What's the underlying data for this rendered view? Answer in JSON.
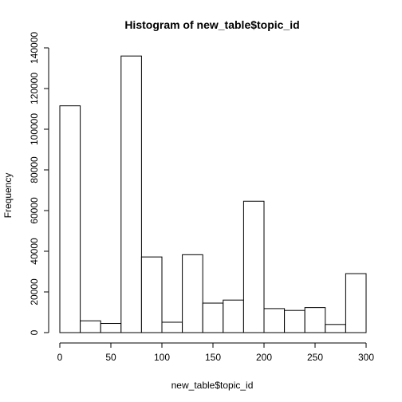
{
  "chart_data": {
    "type": "bar",
    "title": "Histogram of new_table$topic_id",
    "xlabel": "new_table$topic_id",
    "ylabel": "Frequency",
    "bins": [
      {
        "start": 0,
        "end": 20,
        "count": 111500
      },
      {
        "start": 20,
        "end": 40,
        "count": 5800
      },
      {
        "start": 40,
        "end": 60,
        "count": 4500
      },
      {
        "start": 60,
        "end": 80,
        "count": 136000
      },
      {
        "start": 80,
        "end": 100,
        "count": 37200
      },
      {
        "start": 100,
        "end": 120,
        "count": 5100
      },
      {
        "start": 120,
        "end": 140,
        "count": 38300
      },
      {
        "start": 140,
        "end": 160,
        "count": 14500
      },
      {
        "start": 160,
        "end": 180,
        "count": 16000
      },
      {
        "start": 180,
        "end": 200,
        "count": 64600
      },
      {
        "start": 200,
        "end": 220,
        "count": 11800
      },
      {
        "start": 220,
        "end": 240,
        "count": 10900
      },
      {
        "start": 240,
        "end": 260,
        "count": 12300
      },
      {
        "start": 260,
        "end": 280,
        "count": 4000
      },
      {
        "start": 280,
        "end": 300,
        "count": 29000
      }
    ],
    "xlim": [
      0,
      300
    ],
    "ylim": [
      0,
      140000
    ],
    "x_ticks": [
      "0",
      "50",
      "100",
      "150",
      "200",
      "250",
      "300"
    ],
    "y_ticks": [
      "0",
      "20000",
      "40000",
      "60000",
      "80000",
      "100000",
      "120000",
      "140000"
    ],
    "grid": false,
    "colors": {
      "bar_fill": "#ffffff",
      "bar_stroke": "#000000"
    }
  }
}
